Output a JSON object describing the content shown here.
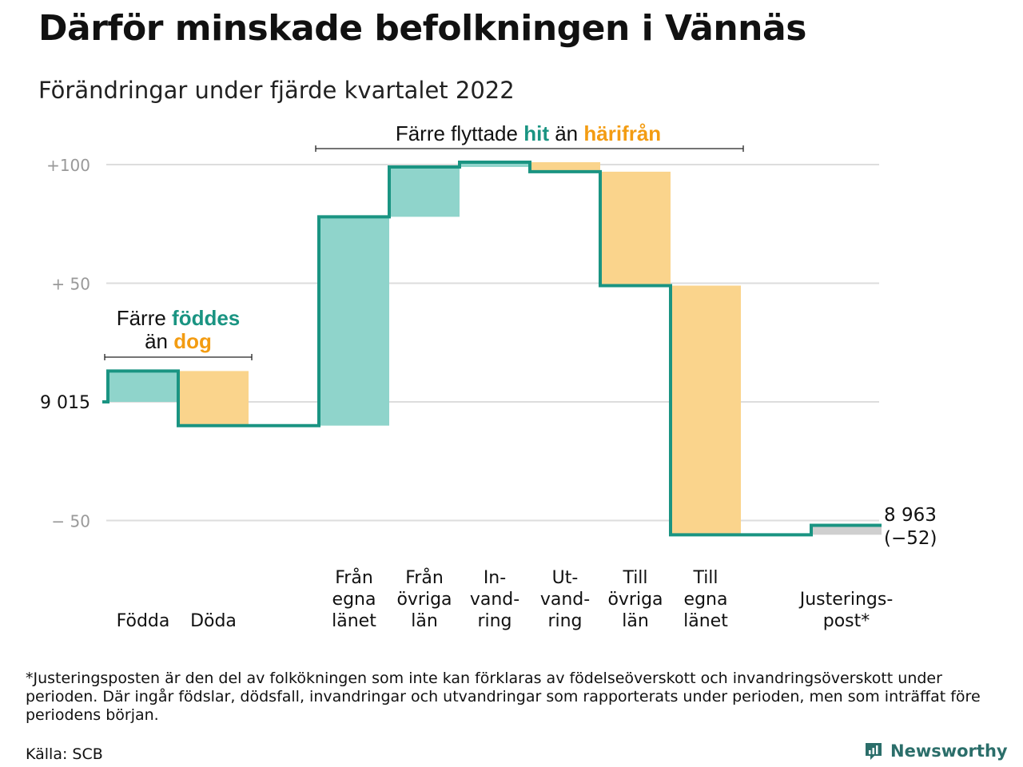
{
  "title": "Därför minskade befolkningen i Vännäs",
  "subtitle": "Förändringar under fjärde kvartalet 2022",
  "chart_data": {
    "type": "waterfall",
    "start_value": 9015,
    "start_label": "9 015",
    "end_value": 8963,
    "end_label": "8 963",
    "change_label": "(−52)",
    "ylim": [
      -60,
      103
    ],
    "yticks": [
      {
        "value": 100,
        "label": "+100"
      },
      {
        "value": 50,
        "label": "+ 50"
      },
      {
        "value": 0,
        "label": "9 015"
      },
      {
        "value": -50,
        "label": "− 50"
      }
    ],
    "steps": [
      {
        "label": [
          "Födda"
        ],
        "change": 13,
        "kind": "in"
      },
      {
        "label": [
          "Döda"
        ],
        "change": -23,
        "kind": "out"
      },
      {
        "label": [
          ""
        ],
        "change": 0,
        "kind": "none"
      },
      {
        "label": [
          "Från",
          "egna",
          "länet"
        ],
        "change": 88,
        "kind": "in"
      },
      {
        "label": [
          "Från",
          "övriga",
          "län"
        ],
        "change": 21,
        "kind": "in"
      },
      {
        "label": [
          "In-",
          "vand-",
          "ring"
        ],
        "change": 2,
        "kind": "in"
      },
      {
        "label": [
          "Ut-",
          "vand-",
          "ring"
        ],
        "change": -4,
        "kind": "out"
      },
      {
        "label": [
          "Till",
          "övriga",
          "län"
        ],
        "change": -48,
        "kind": "out"
      },
      {
        "label": [
          "Till",
          "egna",
          "länet"
        ],
        "change": -105,
        "kind": "out"
      },
      {
        "label": [
          ""
        ],
        "change": 0,
        "kind": "none"
      },
      {
        "label": [
          "Justerings-",
          "post*"
        ],
        "change": 4,
        "kind": "adjust"
      }
    ],
    "annotations": [
      {
        "parts": [
          {
            "text": "Färre ",
            "color": "#111111"
          },
          {
            "text": "föddes",
            "color": "#1a9482"
          }
        ],
        "parts2": [
          {
            "text": "än ",
            "color": "#111111"
          },
          {
            "text": "dog",
            "color": "#f39c12"
          }
        ]
      },
      {
        "parts": [
          {
            "text": "Färre flyttade ",
            "color": "#111111"
          },
          {
            "text": "hit",
            "color": "#1a9482"
          },
          {
            "text": " än ",
            "color": "#111111"
          },
          {
            "text": "härifrån",
            "color": "#f39c12"
          }
        ]
      }
    ],
    "colors": {
      "in": "#8fd4cb",
      "out": "#fad48c",
      "adjust": "#cfcfcf",
      "line": "#1a9482",
      "grid": "#dddddd",
      "tick": "#999999"
    }
  },
  "footnote": "*Justeringsposten är den del av folkökningen som inte kan förklaras av födelseöverskott och invandringsöverskott under perioden. Där ingår födslar, dödsfall, invandringar och utvandringar som rapporterats under perioden, men som inträffat före periodens början.",
  "source": "Källa: SCB",
  "brand": "Newsworthy"
}
